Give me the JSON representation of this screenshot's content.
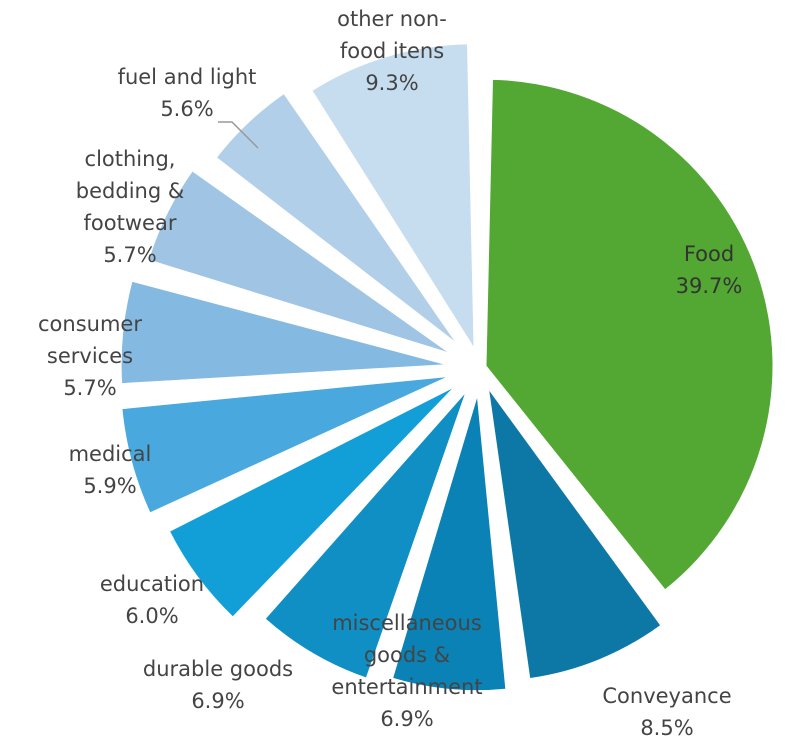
{
  "chart_data": {
    "type": "pie",
    "title": "",
    "slices": [
      {
        "label": [
          "Food"
        ],
        "value": 39.7,
        "value_label": "39.7%",
        "color": "#52a832"
      },
      {
        "label": [
          "Conveyance"
        ],
        "value": 8.5,
        "value_label": "8.5%",
        "color": "#0d78a6"
      },
      {
        "label": [
          "miscellaneous",
          "goods &",
          "entertainment"
        ],
        "value": 6.9,
        "value_label": "6.9%",
        "color": "#0b82b5"
      },
      {
        "label": [
          "durable goods"
        ],
        "value": 6.9,
        "value_label": "6.9%",
        "color": "#0f8fc4"
      },
      {
        "label": [
          "education"
        ],
        "value": 6.0,
        "value_label": "6.0%",
        "color": "#129fd8"
      },
      {
        "label": [
          "medical"
        ],
        "value": 5.9,
        "value_label": "5.9%",
        "color": "#49a9de"
      },
      {
        "label": [
          "consumer",
          "services"
        ],
        "value": 5.7,
        "value_label": "5.7%",
        "color": "#84b9e2"
      },
      {
        "label": [
          "clothing,",
          "bedding &",
          "footwear"
        ],
        "value": 5.7,
        "value_label": "5.7%",
        "color": "#9fc4e4"
      },
      {
        "label": [
          "fuel and light"
        ],
        "value": 5.6,
        "value_label": "5.6%",
        "color": "#b2cfe9"
      },
      {
        "label": [
          "other non-",
          "food itens"
        ],
        "value": 9.3,
        "value_label": "9.3%",
        "color": "#c6dcef"
      }
    ]
  }
}
